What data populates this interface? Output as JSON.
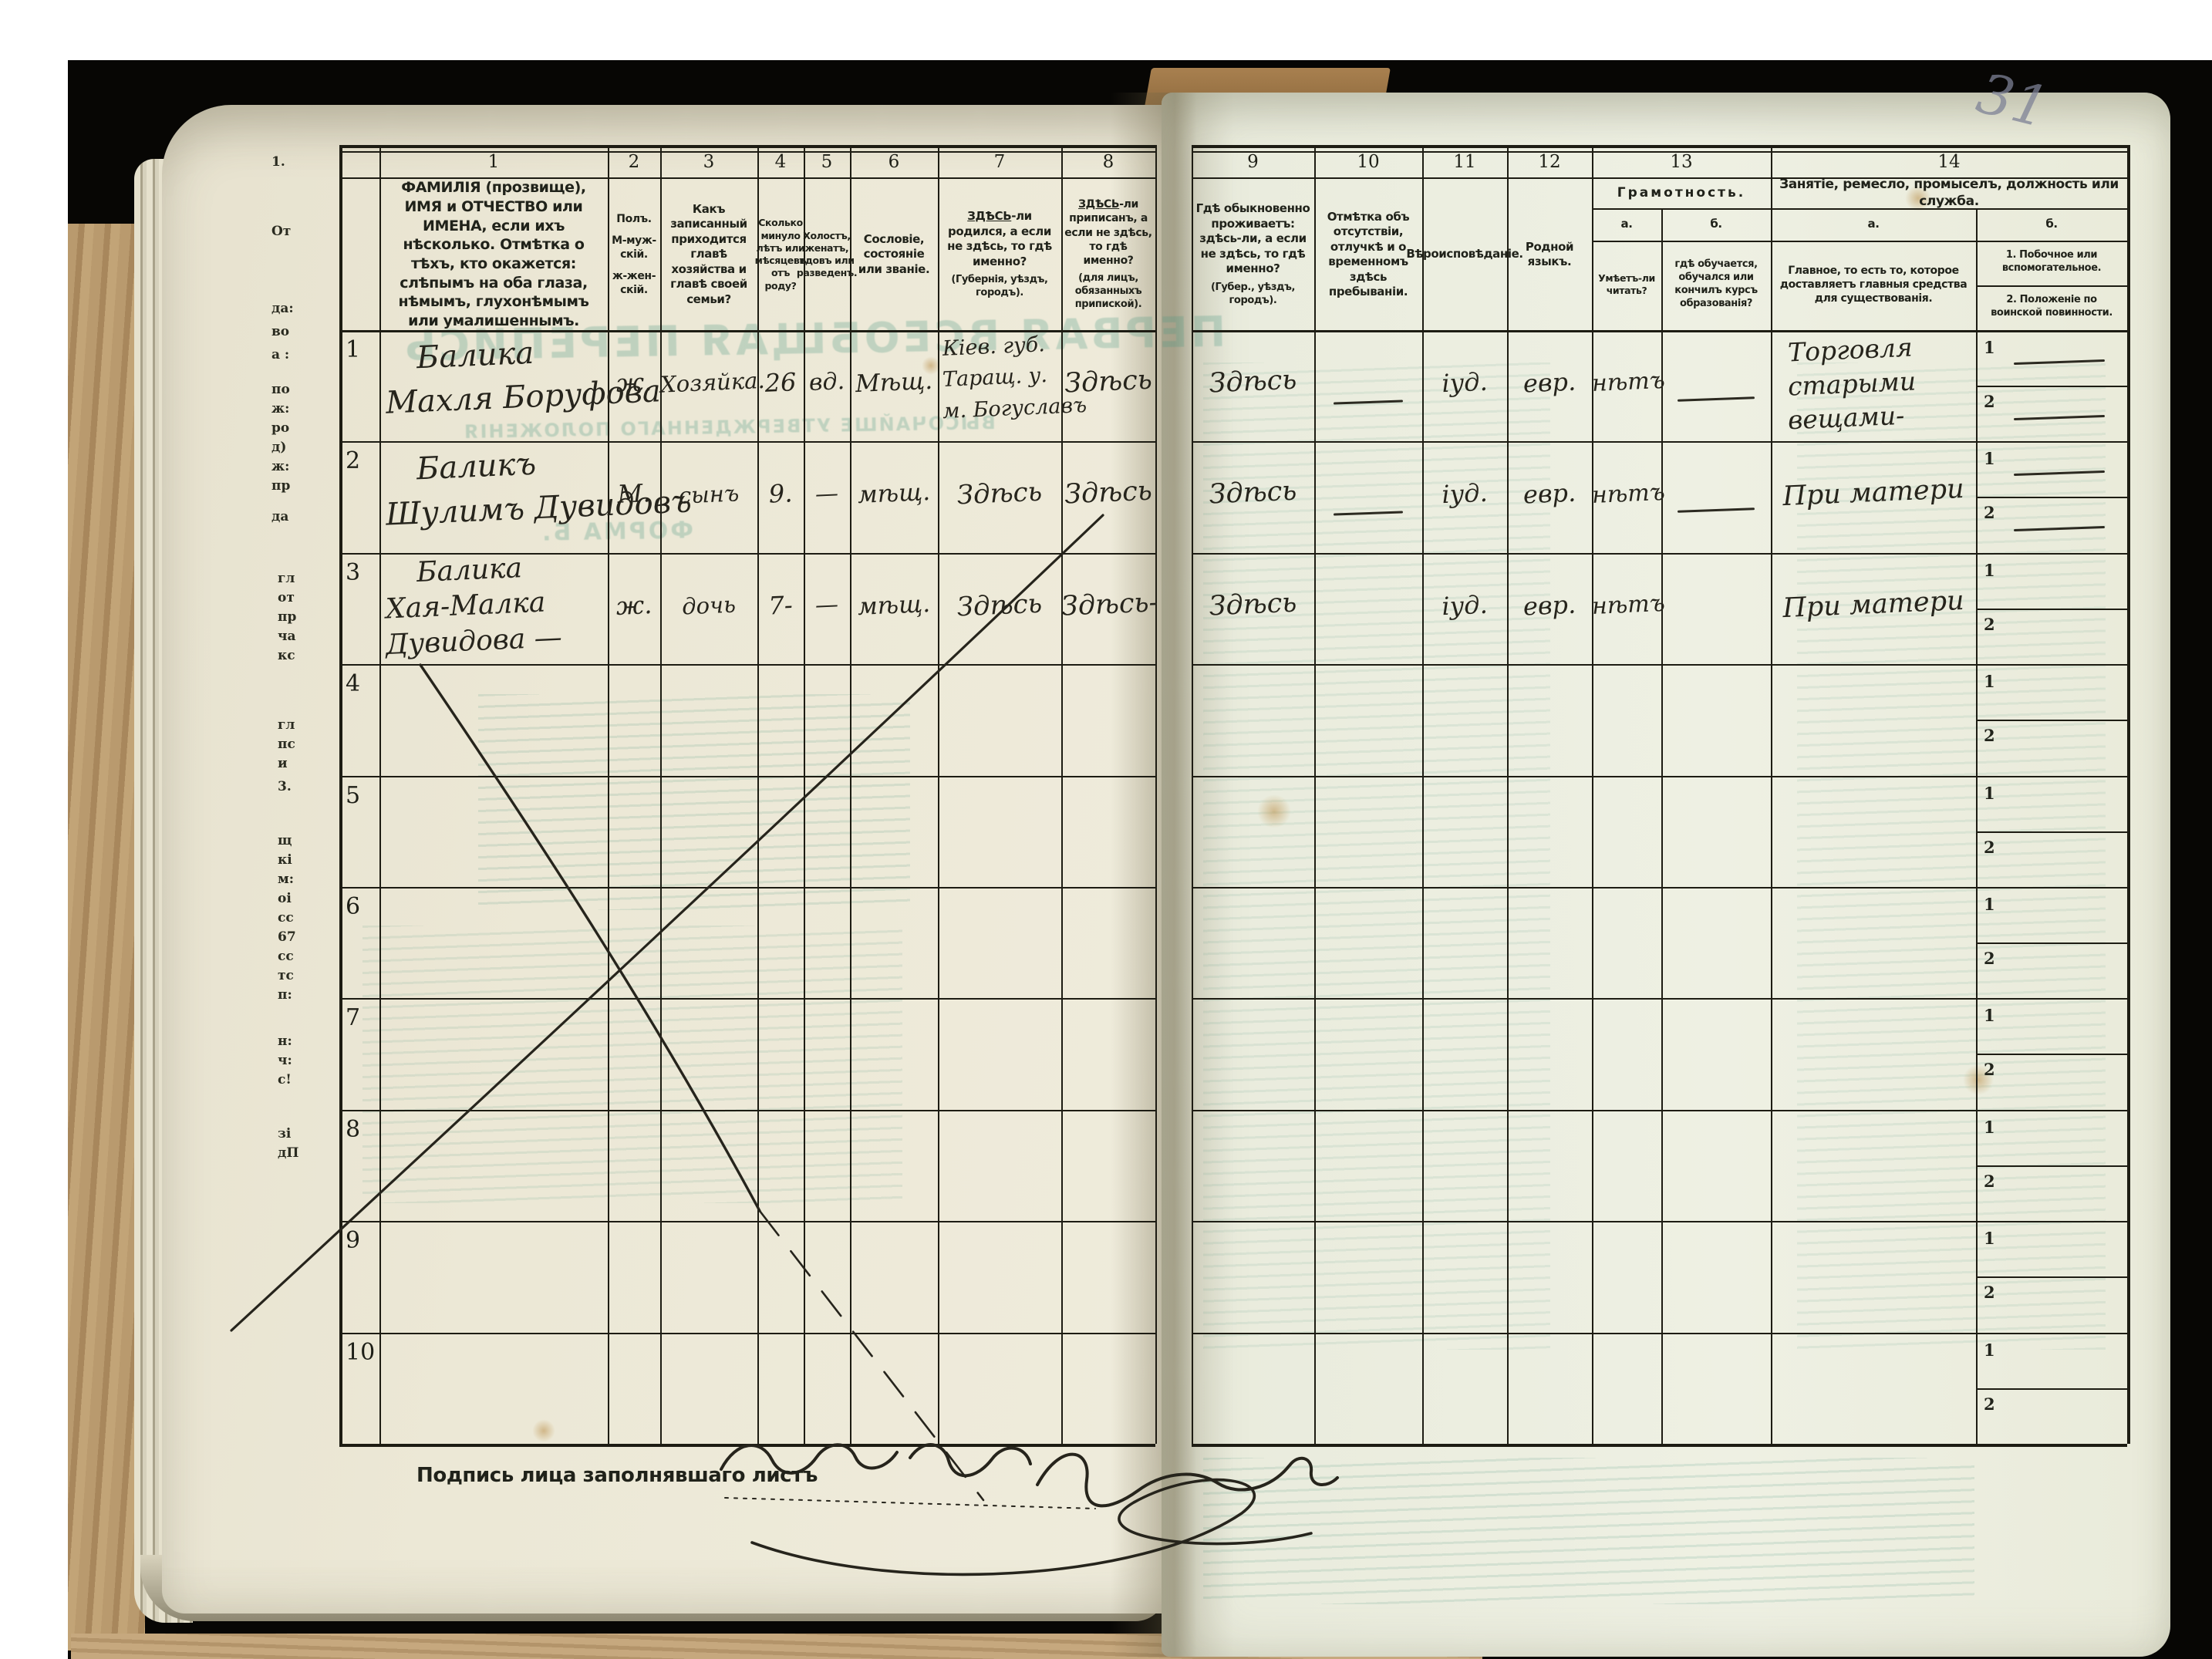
{
  "page": {
    "pencil_number": "31"
  },
  "header": {
    "c1": {
      "num": "1",
      "text": "ФАМИЛІЯ (прозвище), ИМЯ и ОТЧЕСТВО или ИМЕНА, если ихъ нѣсколько. Отмѣтка о тѣхъ, кто окажется: слѣпымъ на оба глаза, нѣмымъ, глухонѣмымъ или умалишеннымъ."
    },
    "c2": {
      "num": "2",
      "line1": "Полъ.",
      "line2": "М-муж-скій.",
      "line3": "ж-жен-скій."
    },
    "c3": {
      "num": "3",
      "text": "Какъ записанный приходится главѣ хозяйства и главѣ своей семьи?"
    },
    "c4": {
      "num": "4",
      "text": "Сколько минуло лѣтъ или мѣсяцевъ отъ роду?"
    },
    "c5": {
      "num": "5",
      "text": "Холостъ, женатъ, вдовъ или разведенъ."
    },
    "c6": {
      "num": "6",
      "text": "Сословіе, состояніе или званіе."
    },
    "c7": {
      "num": "7",
      "u": "ЗДѢСЬ",
      "rest": "-ли родился, а если не здѣсь, то гдѣ именно?",
      "note": "(Губернія, уѣздъ, городъ)."
    },
    "c8": {
      "num": "8",
      "u": "ЗДѢСЬ",
      "rest": "-ли приписанъ, а если не здѣсь, то гдѣ именно?",
      "note": "(для лицъ, обязанныхъ припиской)."
    },
    "c9": {
      "num": "9",
      "text": "Гдѣ обыкновенно проживаетъ: здѣсь-ли, а если не здѣсь, то гдѣ именно?",
      "note": "(Губер., уѣздъ, городъ)."
    },
    "c10": {
      "num": "10",
      "text": "Отмѣтка объ отсутствіи, отлучкѣ и о временномъ здѣсь пребываніи."
    },
    "c11": {
      "num": "11",
      "text": "Вѣроисповѣданіе."
    },
    "c12": {
      "num": "12",
      "text": "Родной языкъ."
    },
    "c13": {
      "num": "13",
      "group": "Грамотность.",
      "a_label": "а.",
      "b_label": "б.",
      "a_text": "Умѣетъ-ли читать?",
      "b_text": "гдѣ обучается, обучался или кончилъ курсъ образованія?"
    },
    "c14": {
      "num": "14",
      "group": "Занятіе, ремесло, промыселъ, должность или служба.",
      "a_label": "а.",
      "b_label": "б.",
      "a_text": "Главное, то есть то, которое доставляетъ главныя средства для существованія.",
      "b_text_1": "1. Побочное или вспомогательное.",
      "b_text_2": "2. Положеніе по воинской повинности."
    }
  },
  "rows": [
    {
      "num": "1",
      "name": [
        "Балика",
        "Махля Боруфова"
      ],
      "sex": "ж.",
      "relation": "Хозяйка.",
      "age": "26",
      "marital": "вд.",
      "estate": "Мѣщ.",
      "birthplace": [
        "Кіев. губ.",
        "Таращ. у.",
        "м. Богуславъ"
      ],
      "registered": "Здѣсь",
      "residence": "Здѣсь",
      "absence": "—",
      "religion": "іуд.",
      "language": "евр.",
      "literacy": "нѣтъ",
      "literacy_note": "—",
      "occupation": [
        "Торговля",
        "старыми",
        "вещами-"
      ],
      "side_1": "—",
      "side_2": "—"
    },
    {
      "num": "2",
      "name": [
        "Баликъ",
        "Шулимъ Дувидовъ"
      ],
      "sex": "М.",
      "relation": "сынъ",
      "age": "9.",
      "marital": "—",
      "estate": "мѣщ.",
      "birthplace": [
        "Здѣсь"
      ],
      "registered": "Здѣсь",
      "residence": "Здѣсь",
      "absence": "—",
      "religion": "іуд.",
      "language": "евр.",
      "literacy": "нѣтъ",
      "literacy_note": "—",
      "occupation": [
        "При матери"
      ],
      "side_1": "—",
      "side_2": "—"
    },
    {
      "num": "3",
      "name": [
        "Балика",
        "Хая-Малка",
        "Дувидова —"
      ],
      "sex": "ж.",
      "relation": "дочь",
      "age": "7-",
      "marital": "—",
      "estate": "мѣщ.",
      "birthplace": [
        "Здѣсь"
      ],
      "registered": "Здѣсь-",
      "residence": "Здѣсь",
      "absence": "",
      "religion": "іуд.",
      "language": "евр.",
      "literacy": "нѣтъ",
      "literacy_note": "",
      "occupation": [
        "При матери"
      ],
      "side_1": "",
      "side_2": ""
    },
    {
      "num": "4"
    },
    {
      "num": "5"
    },
    {
      "num": "6"
    },
    {
      "num": "7"
    },
    {
      "num": "8"
    },
    {
      "num": "9"
    },
    {
      "num": "10"
    }
  ],
  "row_sub_labels": {
    "first": "1",
    "second": "2"
  },
  "footer": {
    "signature_label": "Подпись лица заполнявшаго листъ"
  },
  "bleedthrough": {
    "ghost_title": "ПЕРВАЯ ВСЕОБЩАЯ ПЕРЕПИСЬ",
    "ghost_line": "ВЫСОЧАЙШЕ УТВЕРЖДЕННАГО ПОЛОЖЕНІЯ",
    "ghost_small": "ФОРМА Б."
  },
  "edge_fragments": [
    "1.",
    "От",
    "да:",
    "во",
    "а :",
    "по",
    "ж:",
    "ро",
    "д)",
    "ж:",
    "пр",
    "да",
    "гл",
    "от",
    "пр",
    "ча",
    "кс",
    "гл",
    "пс",
    "и",
    "3.",
    "щ",
    "кі",
    "м:",
    "оі",
    "сс",
    "67",
    "сс",
    "тс",
    "п:",
    "н:",
    "ч:",
    "с!",
    "зі",
    "дП"
  ]
}
